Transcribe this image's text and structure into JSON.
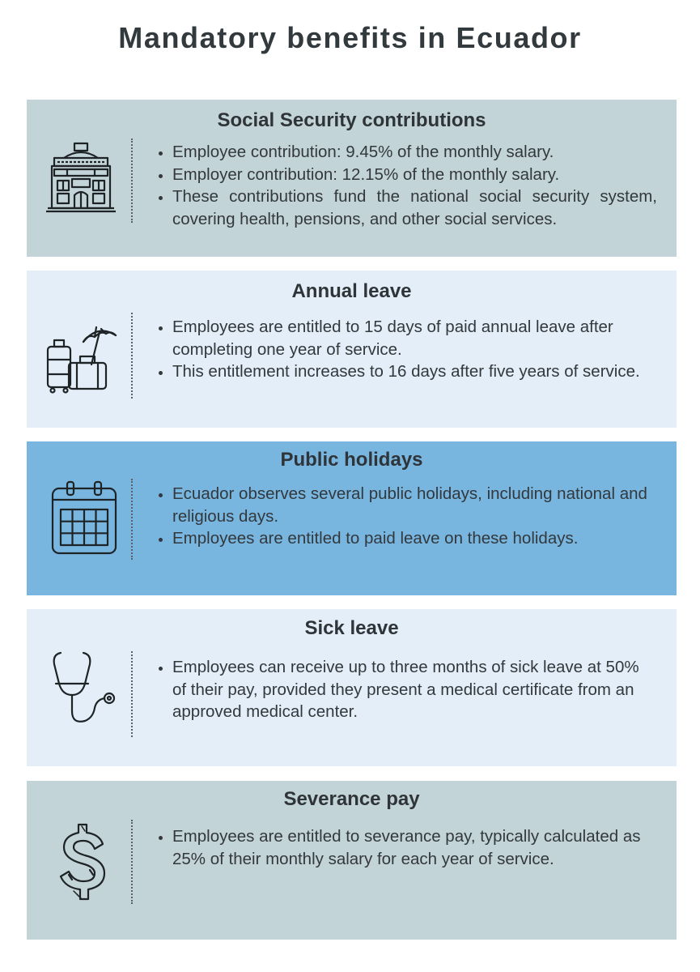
{
  "page": {
    "title": "Mandatory benefits in Ecuador"
  },
  "colors": {
    "grey_card": "#c3d4d9",
    "light_card": "#e3eef8",
    "blue_card": "#78b6e0",
    "icon_stroke": "#1e2326"
  },
  "cards": [
    {
      "title": "Social Security contributions",
      "icon": "government-building-icon",
      "bullets": [
        "Employee contribution: 9.45% of the monthly salary.",
        "Employer contribution: 12.15% of the monthly salary.",
        "These contributions fund the national social security system, covering health, pensions, and other social services."
      ]
    },
    {
      "title": "Annual leave",
      "icon": "luggage-umbrella-icon",
      "bullets": [
        "Employees are entitled to 15 days of paid annual leave after completing one year of service.",
        "This entitlement increases to 16 days after five years of service."
      ]
    },
    {
      "title": "Public holidays",
      "icon": "calendar-icon",
      "bullets": [
        "Ecuador observes several public holidays, including national and religious days.",
        "Employees are entitled to paid leave on these holidays."
      ]
    },
    {
      "title": "Sick leave",
      "icon": "stethoscope-icon",
      "bullets": [
        "Employees can receive up to three months of sick leave at 50% of their pay, provided they present a medical certificate from an approved medical center."
      ]
    },
    {
      "title": "Severance pay",
      "icon": "dollar-sign-icon",
      "bullets": [
        "Employees are entitled to severance pay, typically calculated as 25% of their monthly salary for each year of service."
      ]
    }
  ]
}
